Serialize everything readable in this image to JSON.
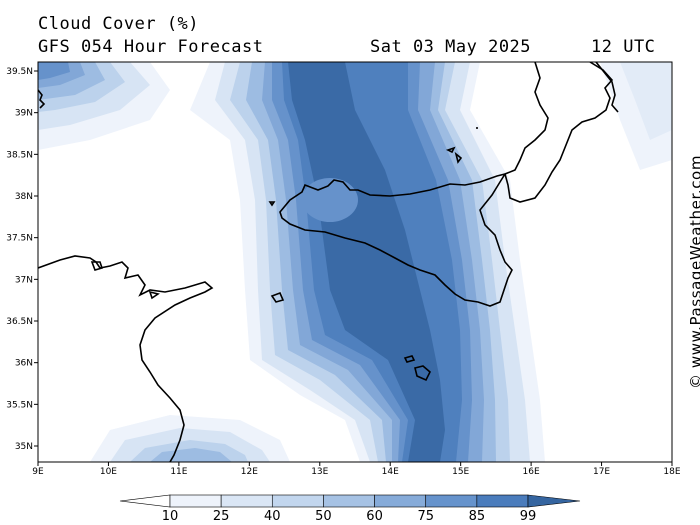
{
  "header": {
    "title": "Cloud Cover (%)",
    "model_line": "GFS 054 Hour Forecast",
    "date": "Sat 03 May 2025",
    "time": "12 UTC"
  },
  "credit": "© www.PassageWeather.com",
  "axes": {
    "longitude_labels": [
      "9E",
      "10E",
      "11E",
      "12E",
      "13E",
      "14E",
      "15E",
      "16E",
      "17E",
      "18E"
    ],
    "latitude_labels": [
      "39.5N",
      "39N",
      "38.5N",
      "38N",
      "37.5N",
      "37N",
      "36.5N",
      "36N",
      "35.5N",
      "35N"
    ]
  },
  "legend": {
    "values": [
      "10",
      "25",
      "40",
      "50",
      "60",
      "75",
      "85",
      "99"
    ],
    "colors": [
      "#ffffff",
      "#eef3fb",
      "#dae6f5",
      "#c2d6ee",
      "#a6c2e4",
      "#86abd9",
      "#6693cc",
      "#4a7cbc",
      "#3565a0"
    ]
  }
}
